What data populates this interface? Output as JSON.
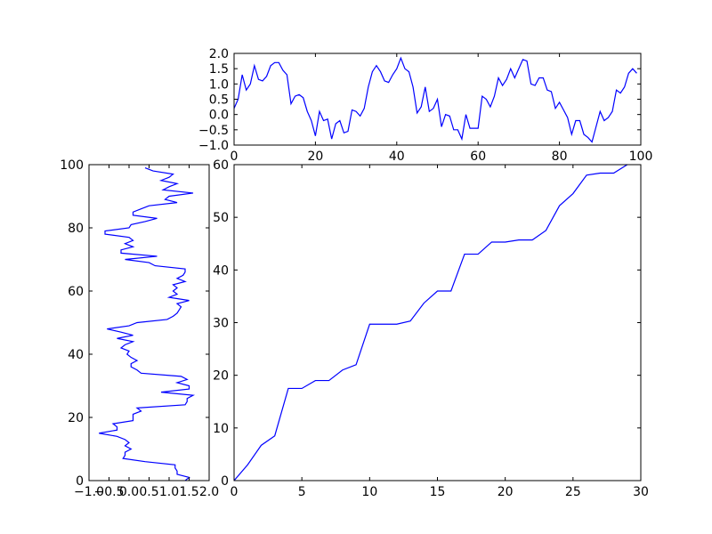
{
  "chart_data": [
    {
      "type": "line",
      "x": [
        0,
        1,
        2,
        3,
        4,
        5,
        6,
        7,
        8,
        9,
        10,
        11,
        12,
        13,
        14,
        15,
        16,
        17,
        18,
        19,
        20,
        21,
        22,
        23,
        24,
        25,
        26,
        27,
        28,
        29,
        30,
        31,
        32,
        33,
        34,
        35,
        36,
        37,
        38,
        39,
        40,
        41,
        42,
        43,
        44,
        45,
        46,
        47,
        48,
        49,
        50,
        51,
        52,
        53,
        54,
        55,
        56,
        57,
        58,
        59,
        60,
        61,
        62,
        63,
        64,
        65,
        66,
        67,
        68,
        69,
        70,
        71,
        72,
        73,
        74,
        75,
        76,
        77,
        78,
        79,
        80,
        81,
        82,
        83,
        84,
        85,
        86,
        87,
        88,
        89,
        90,
        91,
        92,
        93,
        94,
        95,
        96,
        97,
        98,
        99
      ],
      "series": [
        {
          "color": "#0000ff",
          "values": [
            0.2,
            0.5,
            1.3,
            0.8,
            1.0,
            1.6,
            1.15,
            1.1,
            1.25,
            1.6,
            1.7,
            1.7,
            1.45,
            1.3,
            0.35,
            0.6,
            0.65,
            0.55,
            0.1,
            -0.2,
            -0.7,
            0.1,
            -0.2,
            -0.15,
            -0.8,
            -0.3,
            -0.2,
            -0.6,
            -0.55,
            0.15,
            0.1,
            -0.05,
            0.2,
            0.9,
            1.4,
            1.6,
            1.4,
            1.1,
            1.05,
            1.3,
            1.5,
            1.85,
            1.5,
            1.4,
            0.9,
            0.05,
            0.25,
            0.9,
            0.1,
            0.2,
            0.5,
            -0.4,
            0,
            -0.05,
            -0.5,
            -0.5,
            -0.8,
            0,
            -0.45,
            -0.45,
            -0.45,
            0.6,
            0.5,
            0.25,
            0.6,
            1.2,
            0.95,
            1.15,
            1.5,
            1.2,
            1.5,
            1.8,
            1.75,
            1.0,
            0.95,
            1.2,
            1.2,
            0.8,
            0.75,
            0.2,
            0.4,
            0.15,
            -0.1,
            -0.65,
            -0.2,
            -0.2,
            -0.65,
            -0.75,
            -0.9,
            -0.4,
            0.1,
            -0.2,
            -0.1,
            0.1,
            0.8,
            0.7,
            0.9,
            1.35,
            1.5,
            1.35
          ]
        }
      ],
      "xlim": [
        0,
        100
      ],
      "xticks": [
        0,
        20,
        40,
        60,
        80,
        100
      ],
      "ylim": [
        -1,
        2
      ],
      "yticks": [
        {
          "value": -1,
          "label": "−1.0"
        },
        {
          "value": -0.5,
          "label": "−0.5"
        },
        {
          "value": 0,
          "label": "0.0"
        },
        0.5,
        {
          "value": 1,
          "label": "1.0"
        },
        1.5,
        {
          "value": 2,
          "label": "2.0"
        }
      ]
    },
    {
      "type": "line",
      "x": [
        0,
        1,
        2,
        3,
        4,
        5,
        6,
        7,
        8,
        9,
        10,
        11,
        12,
        13,
        14,
        15,
        16,
        17,
        18,
        19,
        20,
        21,
        22,
        23,
        24,
        25,
        26,
        27,
        28,
        29
      ],
      "series": [
        {
          "color": "#0000ff",
          "values": [
            0,
            3,
            6.7,
            8.5,
            17.5,
            17.5,
            19,
            19,
            21,
            22,
            29.7,
            29.7,
            29.7,
            30.3,
            33.7,
            36,
            36,
            43,
            43,
            45.3,
            45.3,
            45.7,
            45.7,
            47.5,
            52.2,
            54.5,
            58,
            58.4,
            58.4,
            60
          ]
        }
      ],
      "xlim": [
        0,
        30
      ],
      "xticks": [
        0,
        5,
        10,
        15,
        20,
        25,
        30
      ],
      "ylim": [
        0,
        60
      ],
      "yticks": [
        0,
        10,
        20,
        30,
        40,
        50,
        60
      ]
    },
    {
      "type": "line",
      "orientation": "horizontal",
      "y": [
        0,
        1,
        2,
        3,
        4,
        5,
        6,
        7,
        8,
        9,
        10,
        11,
        12,
        13,
        14,
        15,
        16,
        17,
        18,
        19,
        20,
        21,
        22,
        23,
        24,
        25,
        26,
        27,
        28,
        29,
        30,
        31,
        32,
        33,
        34,
        35,
        36,
        37,
        38,
        39,
        40,
        41,
        42,
        43,
        44,
        45,
        46,
        47,
        48,
        49,
        50,
        51,
        52,
        53,
        54,
        55,
        56,
        57,
        58,
        59,
        60,
        61,
        62,
        63,
        64,
        65,
        66,
        67,
        68,
        69,
        70,
        71,
        72,
        73,
        74,
        75,
        76,
        77,
        78,
        79,
        80,
        81,
        82,
        83,
        84,
        85,
        86,
        87,
        88,
        89,
        90,
        91,
        92,
        93,
        94,
        95,
        96,
        97,
        98,
        99
      ],
      "series": [
        {
          "color": "#0000ff",
          "values": [
            1.4,
            1.5,
            1.2,
            1.2,
            1.15,
            1.15,
            0.4,
            -0.15,
            -0.1,
            -0.1,
            0.05,
            -0.1,
            0.0,
            -0.1,
            -0.3,
            -0.75,
            -0.3,
            -0.3,
            -0.4,
            0.1,
            0.1,
            0.1,
            0.3,
            0.2,
            1.4,
            1.45,
            1.45,
            1.6,
            0.8,
            1.5,
            1.5,
            1.2,
            1.45,
            1.3,
            0.3,
            0.2,
            0.05,
            0.05,
            0.2,
            0.05,
            -0.05,
            0.0,
            -0.2,
            -0.1,
            0.1,
            -0.3,
            0.1,
            -0.2,
            -0.55,
            0.0,
            0.2,
            0.95,
            1.1,
            1.2,
            1.25,
            1.3,
            1.2,
            1.5,
            1.0,
            1.2,
            1.1,
            1.2,
            1.1,
            1.4,
            1.2,
            1.35,
            1.4,
            1.4,
            0.65,
            0.5,
            -0.1,
            0.7,
            -0.2,
            -0.2,
            0.1,
            -0.1,
            0.1,
            0.0,
            -0.6,
            -0.6,
            0.0,
            0.05,
            0.4,
            0.7,
            0.1,
            0.1,
            0.3,
            0.5,
            1.2,
            0.9,
            1.0,
            1.6,
            0.85,
            1.0,
            1.2,
            0.8,
            1.0,
            1.1,
            0.6,
            0.4
          ]
        }
      ],
      "xlim": [
        -1,
        2
      ],
      "xticks": [
        {
          "value": -1,
          "label": "−1.0"
        },
        {
          "value": -0.5,
          "label": "−0.5"
        },
        {
          "value": 0,
          "label": "0.0"
        },
        0.5,
        {
          "value": 1,
          "label": "1.0"
        },
        1.5,
        {
          "value": 2,
          "label": "2.0"
        }
      ],
      "ylim": [
        0,
        100
      ],
      "yticks": [
        0,
        20,
        40,
        60,
        80,
        100
      ]
    }
  ]
}
